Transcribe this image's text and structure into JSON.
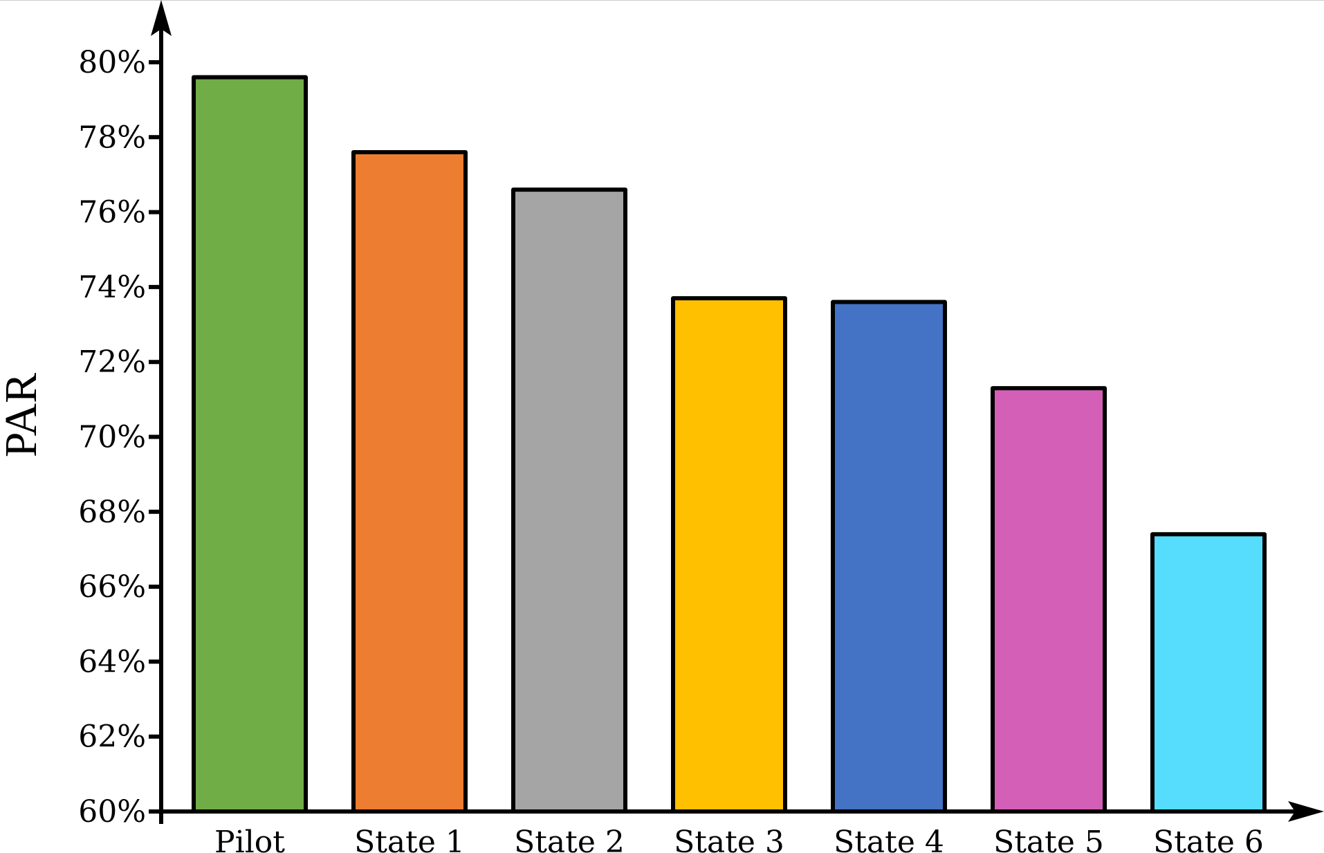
{
  "chart_data": {
    "type": "bar",
    "title": "",
    "xlabel": "",
    "ylabel": "PAR",
    "ylim": [
      60,
      81
    ],
    "yticks": [
      "60%",
      "62%",
      "64%",
      "66%",
      "68%",
      "70%",
      "72%",
      "74%",
      "76%",
      "78%",
      "80%"
    ],
    "grid": false,
    "legend": null,
    "categories": [
      "Pilot",
      "State 1",
      "State 2",
      "State 3",
      "State 4",
      "State 5",
      "State 6"
    ],
    "values": [
      79.6,
      77.6,
      76.6,
      73.7,
      73.6,
      71.3,
      67.4
    ],
    "colors": [
      "#70AD47",
      "#ED7D31",
      "#A5A5A5",
      "#FFC000",
      "#4472C4",
      "#D35FB7",
      "#56DDFD"
    ],
    "value_unit": "%"
  }
}
